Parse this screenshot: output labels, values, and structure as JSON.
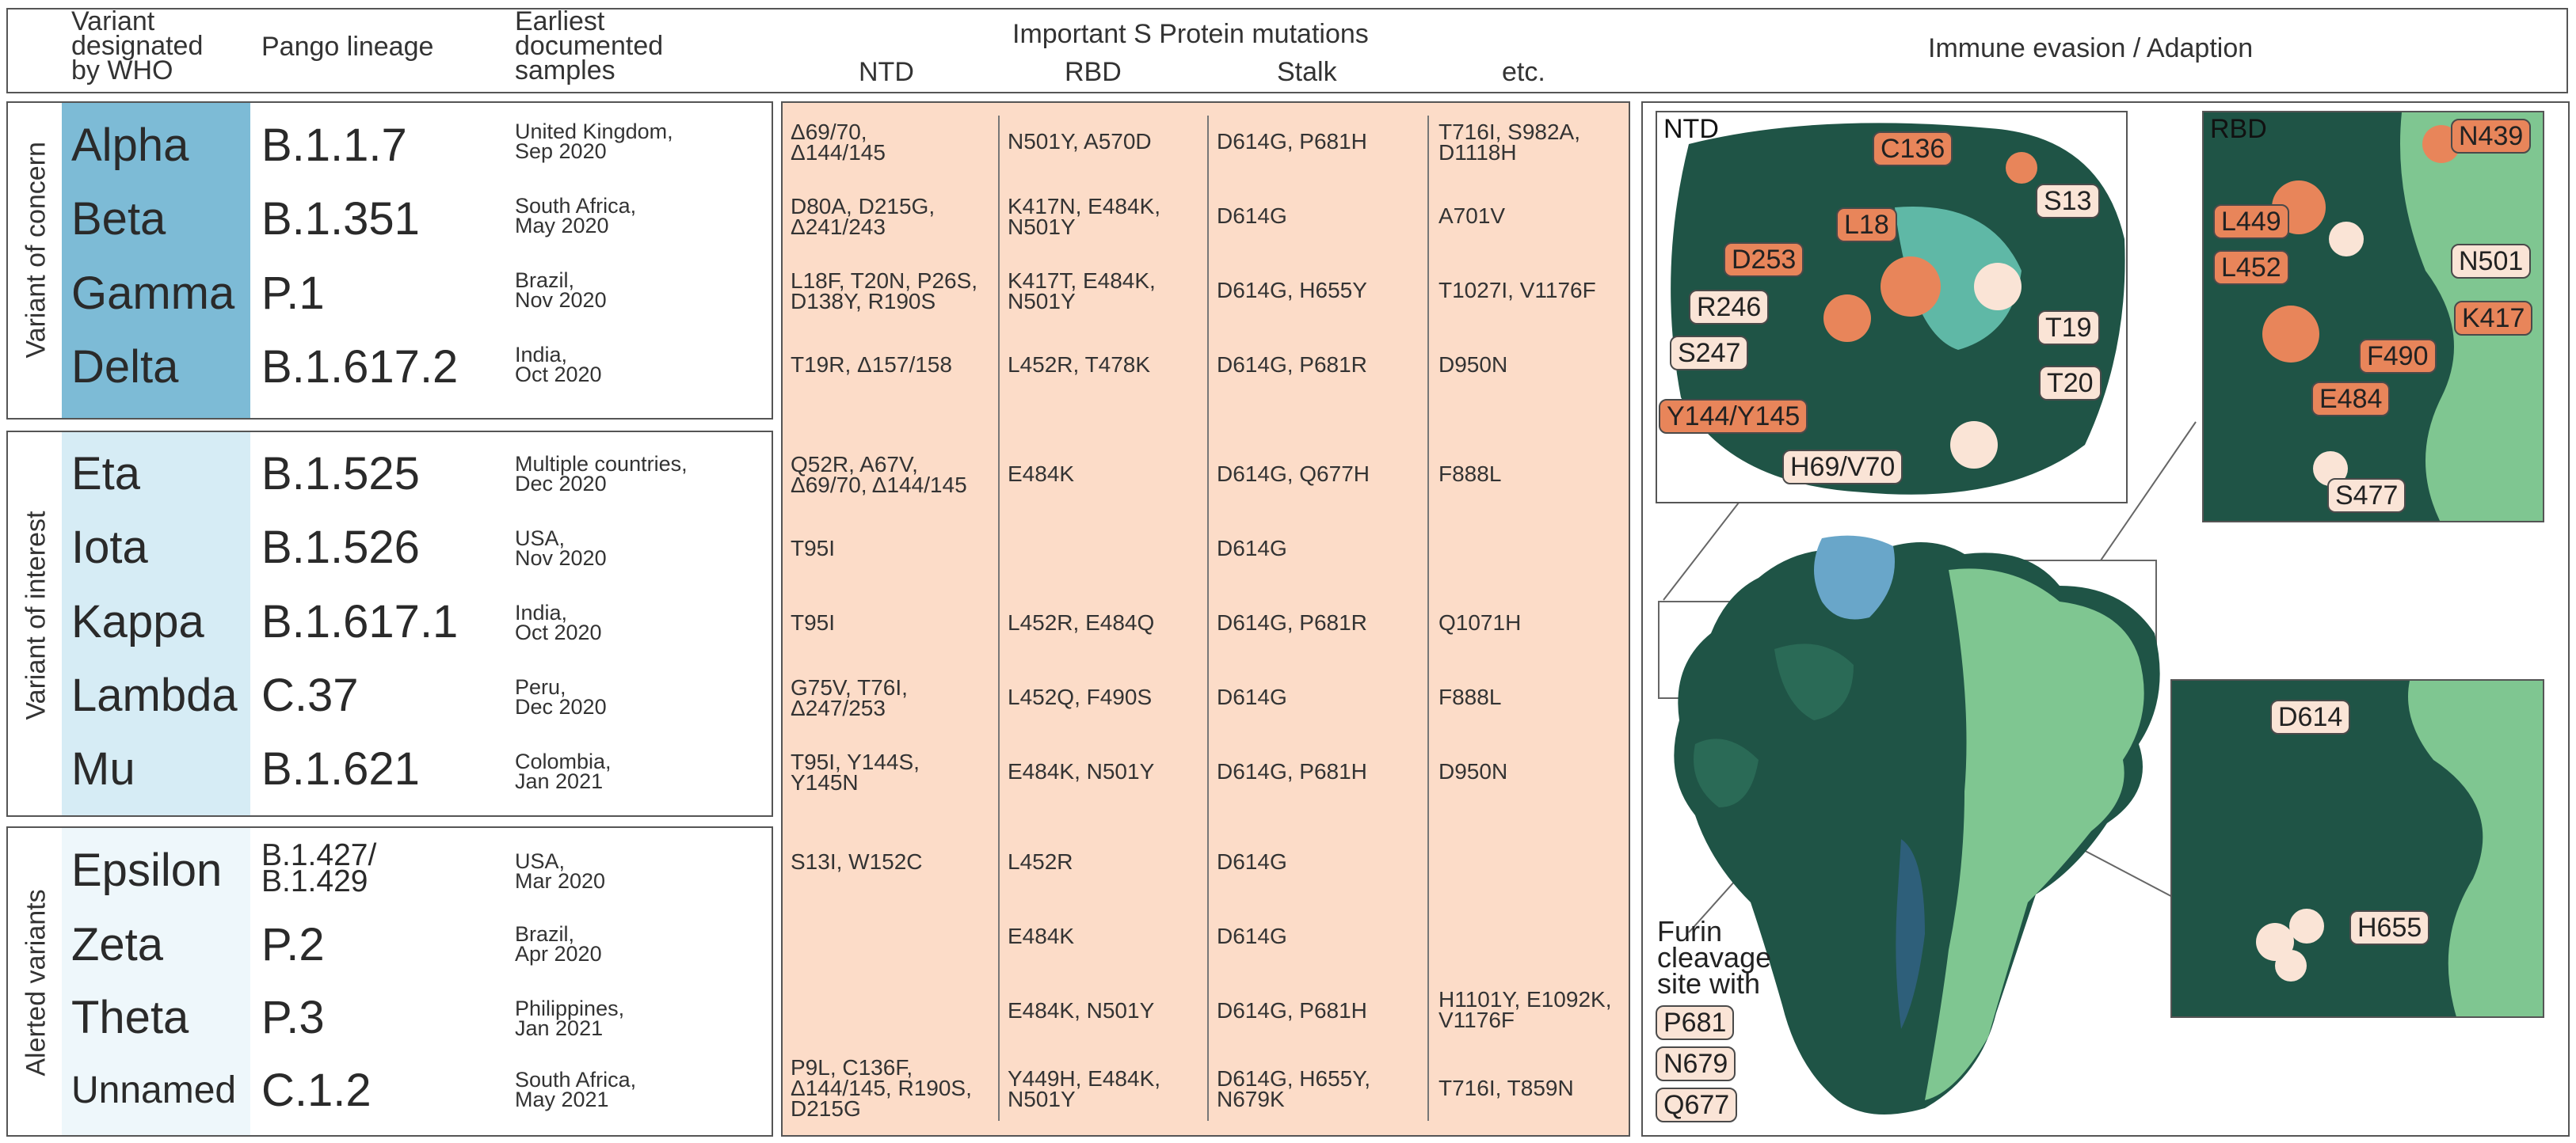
{
  "header": {
    "col_variant": [
      "Variant",
      "designated",
      "by WHO"
    ],
    "col_lineage": "Pango lineage",
    "col_samples": [
      "Earliest",
      "documented",
      "samples"
    ],
    "col_mutations": "Important S Protein mutations",
    "sub_ntd": "NTD",
    "sub_rbd": "RBD",
    "sub_stalk": "Stalk",
    "sub_etc": "etc.",
    "col_immune": "Immune evasion / Adaption"
  },
  "groups": {
    "concern": "Variant of concern",
    "interest": "Variant of interest",
    "alerted": "Alerted variants"
  },
  "rows": [
    {
      "name": "Alpha",
      "lineage": "B.1.1.7",
      "s1": "United Kingdom,",
      "s2": "Sep 2020",
      "ntd1": "Δ69/70,",
      "ntd2": "Δ144/145",
      "rbd1": "N501Y, A570D",
      "rbd2": "",
      "stalk1": "D614G, P681H",
      "stalk2": "",
      "etc1": "T716I, S982A,",
      "etc2": "D1118H"
    },
    {
      "name": "Beta",
      "lineage": "B.1.351",
      "s1": "South Africa,",
      "s2": "May 2020",
      "ntd1": "D80A, D215G,",
      "ntd2": "Δ241/243",
      "rbd1": "K417N, E484K,",
      "rbd2": "N501Y",
      "stalk1": "D614G",
      "stalk2": "",
      "etc1": "A701V",
      "etc2": ""
    },
    {
      "name": "Gamma",
      "lineage": "P.1",
      "s1": "Brazil,",
      "s2": "Nov 2020",
      "ntd1": "L18F, T20N, P26S,",
      "ntd2": "D138Y, R190S",
      "rbd1": "K417T, E484K,",
      "rbd2": "N501Y",
      "stalk1": "D614G, H655Y",
      "stalk2": "",
      "etc1": "T1027I, V1176F",
      "etc2": ""
    },
    {
      "name": "Delta",
      "lineage": "B.1.617.2",
      "s1": "India,",
      "s2": "Oct 2020",
      "ntd1": "T19R, Δ157/158",
      "ntd2": "",
      "rbd1": "L452R, T478K",
      "rbd2": "",
      "stalk1": "D614G, P681R",
      "stalk2": "",
      "etc1": "D950N",
      "etc2": ""
    },
    {
      "name": "Eta",
      "lineage": "B.1.525",
      "s1": "Multiple countries,",
      "s2": "Dec 2020",
      "ntd1": "Q52R, A67V,",
      "ntd2": "Δ69/70, Δ144/145",
      "rbd1": "E484K",
      "rbd2": "",
      "stalk1": "D614G, Q677H",
      "stalk2": "",
      "etc1": "F888L",
      "etc2": ""
    },
    {
      "name": "Iota",
      "lineage": "B.1.526",
      "s1": "USA,",
      "s2": "Nov 2020",
      "ntd1": "T95I",
      "ntd2": "",
      "rbd1": "",
      "rbd2": "",
      "stalk1": "D614G",
      "stalk2": "",
      "etc1": "",
      "etc2": ""
    },
    {
      "name": "Kappa",
      "lineage": "B.1.617.1",
      "s1": "India,",
      "s2": "Oct 2020",
      "ntd1": "T95I",
      "ntd2": "",
      "rbd1": "L452R, E484Q",
      "rbd2": "",
      "stalk1": "D614G, P681R",
      "stalk2": "",
      "etc1": "Q1071H",
      "etc2": ""
    },
    {
      "name": "Lambda",
      "lineage": "C.37",
      "s1": "Peru,",
      "s2": "Dec 2020",
      "ntd1": "G75V, T76I,",
      "ntd2": "Δ247/253",
      "rbd1": "L452Q, F490S",
      "rbd2": "",
      "stalk1": "D614G",
      "stalk2": "",
      "etc1": "F888L",
      "etc2": ""
    },
    {
      "name": "Mu",
      "lineage": "B.1.621",
      "s1": "Colombia,",
      "s2": "Jan 2021",
      "ntd1": "T95I, Y144S,",
      "ntd2": "Y145N",
      "rbd1": "E484K, N501Y",
      "rbd2": "",
      "stalk1": "D614G, P681H",
      "stalk2": "",
      "etc1": "D950N",
      "etc2": ""
    },
    {
      "name": "Epsilon",
      "lineage": "B.1.427/",
      "lineage2": "B.1.429",
      "s1": "USA,",
      "s2": "Mar 2020",
      "ntd1": "S13I, W152C",
      "ntd2": "",
      "rbd1": "L452R",
      "rbd2": "",
      "stalk1": "D614G",
      "stalk2": "",
      "etc1": "",
      "etc2": ""
    },
    {
      "name": "Zeta",
      "lineage": "P.2",
      "s1": "Brazil,",
      "s2": "Apr 2020",
      "ntd1": "",
      "ntd2": "",
      "rbd1": "E484K",
      "rbd2": "",
      "stalk1": "D614G",
      "stalk2": "",
      "etc1": "",
      "etc2": ""
    },
    {
      "name": "Theta",
      "lineage": "P.3",
      "s1": "Philippines,",
      "s2": "Jan 2021",
      "ntd1": "",
      "ntd2": "",
      "rbd1": "E484K, N501Y",
      "rbd2": "",
      "stalk1": "D614G, P681H",
      "stalk2": "",
      "etc1": "H1101Y, E1092K,",
      "etc2": "V1176F"
    },
    {
      "name": "Unnamed",
      "lineage": "C.1.2",
      "s1": "South Africa,",
      "s2": "May 2021",
      "ntd1": "P9L, C136F,",
      "ntd2": "Δ144/145, R190S,",
      "ntd3": "D215G",
      "rbd1": "Y449H, E484K,",
      "rbd2": "N501Y",
      "stalk1": "D614G, H655Y,",
      "stalk2": "N679K",
      "etc1": "T716I, T859N",
      "etc2": ""
    }
  ],
  "panels": {
    "ntd_title": "NTD",
    "ntd_labels": [
      "C136",
      "L18",
      "D253",
      "R246",
      "S247",
      "Y144/Y145",
      "H69/V70",
      "S13",
      "T19",
      "T20"
    ],
    "rbd_title": "RBD",
    "rbd_labels": [
      "N439",
      "L449",
      "L452",
      "N501",
      "K417",
      "F490",
      "E484",
      "S477"
    ],
    "stalk_labels": [
      "D614",
      "H655"
    ],
    "furin_text": [
      "Furin",
      "cleavage",
      "site with"
    ],
    "furin_labels": [
      "P681",
      "N679",
      "Q677"
    ]
  },
  "colors": {
    "concern": "#7dbbd6",
    "interest": "#d6ecf5",
    "alerted": "#eef7fb",
    "mutation_bg": "#fcdcc8",
    "surface_dark": "#1f5446",
    "surface_light": "#7fc691",
    "surface_blue": "#69a6c9",
    "mutation_orange": "#e8855a",
    "mutation_light": "#fae4d6"
  }
}
